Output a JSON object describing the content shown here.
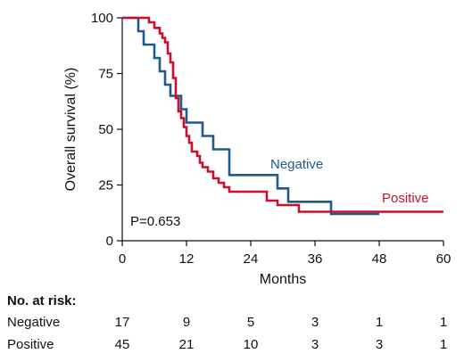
{
  "chart_data": {
    "type": "line",
    "step": true,
    "ylabel": "Overall survival (%)",
    "xlabel": "Months",
    "xlim": [
      0,
      60
    ],
    "ylim": [
      0,
      100
    ],
    "xticks": [
      0,
      12,
      24,
      36,
      48,
      60
    ],
    "yticks": [
      0,
      25,
      50,
      75,
      100
    ],
    "annotation": "P=0.653",
    "series": [
      {
        "name": "Negative",
        "color": "#1f5a8c",
        "points": [
          [
            0,
            100
          ],
          [
            3,
            100
          ],
          [
            3,
            94
          ],
          [
            4,
            94
          ],
          [
            4,
            88
          ],
          [
            6,
            88
          ],
          [
            6,
            82
          ],
          [
            7,
            82
          ],
          [
            7,
            76
          ],
          [
            8,
            76
          ],
          [
            8,
            70
          ],
          [
            9,
            70
          ],
          [
            9,
            65
          ],
          [
            11,
            65
          ],
          [
            11,
            59
          ],
          [
            12,
            59
          ],
          [
            12,
            53
          ],
          [
            15,
            53
          ],
          [
            15,
            47
          ],
          [
            17,
            47
          ],
          [
            17,
            41
          ],
          [
            20,
            41
          ],
          [
            20,
            29.5
          ],
          [
            29,
            29.5
          ],
          [
            29,
            23.5
          ],
          [
            31,
            23.5
          ],
          [
            31,
            17.5
          ],
          [
            39,
            17.5
          ],
          [
            39,
            12
          ],
          [
            48,
            12
          ]
        ]
      },
      {
        "name": "Positive",
        "color": "#c8102e",
        "points": [
          [
            0,
            100
          ],
          [
            5,
            100
          ],
          [
            5,
            98
          ],
          [
            6,
            98
          ],
          [
            6,
            95.5
          ],
          [
            7,
            95.5
          ],
          [
            7,
            93
          ],
          [
            7.5,
            93
          ],
          [
            7.5,
            91
          ],
          [
            8,
            91
          ],
          [
            8,
            89
          ],
          [
            8.5,
            89
          ],
          [
            8.5,
            84
          ],
          [
            9,
            84
          ],
          [
            9,
            80
          ],
          [
            9.5,
            80
          ],
          [
            9.5,
            73
          ],
          [
            10,
            73
          ],
          [
            10,
            64
          ],
          [
            10.5,
            64
          ],
          [
            10.5,
            58
          ],
          [
            11,
            58
          ],
          [
            11,
            55
          ],
          [
            11.5,
            55
          ],
          [
            11.5,
            51
          ],
          [
            12,
            51
          ],
          [
            12,
            47
          ],
          [
            12.5,
            47
          ],
          [
            12.5,
            44
          ],
          [
            13,
            44
          ],
          [
            13,
            40
          ],
          [
            14,
            40
          ],
          [
            14,
            38
          ],
          [
            14.5,
            38
          ],
          [
            14.5,
            35
          ],
          [
            15,
            35
          ],
          [
            15,
            33
          ],
          [
            16,
            33
          ],
          [
            16,
            31
          ],
          [
            17,
            31
          ],
          [
            17,
            28
          ],
          [
            18,
            28
          ],
          [
            18,
            26
          ],
          [
            19,
            26
          ],
          [
            19,
            24
          ],
          [
            20,
            24
          ],
          [
            20,
            22
          ],
          [
            27,
            22
          ],
          [
            27,
            18
          ],
          [
            29,
            18
          ],
          [
            29,
            16
          ],
          [
            33,
            16
          ],
          [
            33,
            13
          ],
          [
            60,
            13
          ]
        ]
      }
    ]
  },
  "series_labels": {
    "negative": "Negative",
    "positive": "Positive"
  },
  "risk_table": {
    "title": "No. at risk:",
    "timepoints": [
      0,
      12,
      24,
      36,
      48,
      60
    ],
    "rows": [
      {
        "name": "Negative",
        "values": [
          "17",
          "9",
          "5",
          "3",
          "1",
          "1"
        ]
      },
      {
        "name": "Positive",
        "values": [
          "45",
          "21",
          "10",
          "3",
          "3",
          "1"
        ]
      }
    ]
  }
}
